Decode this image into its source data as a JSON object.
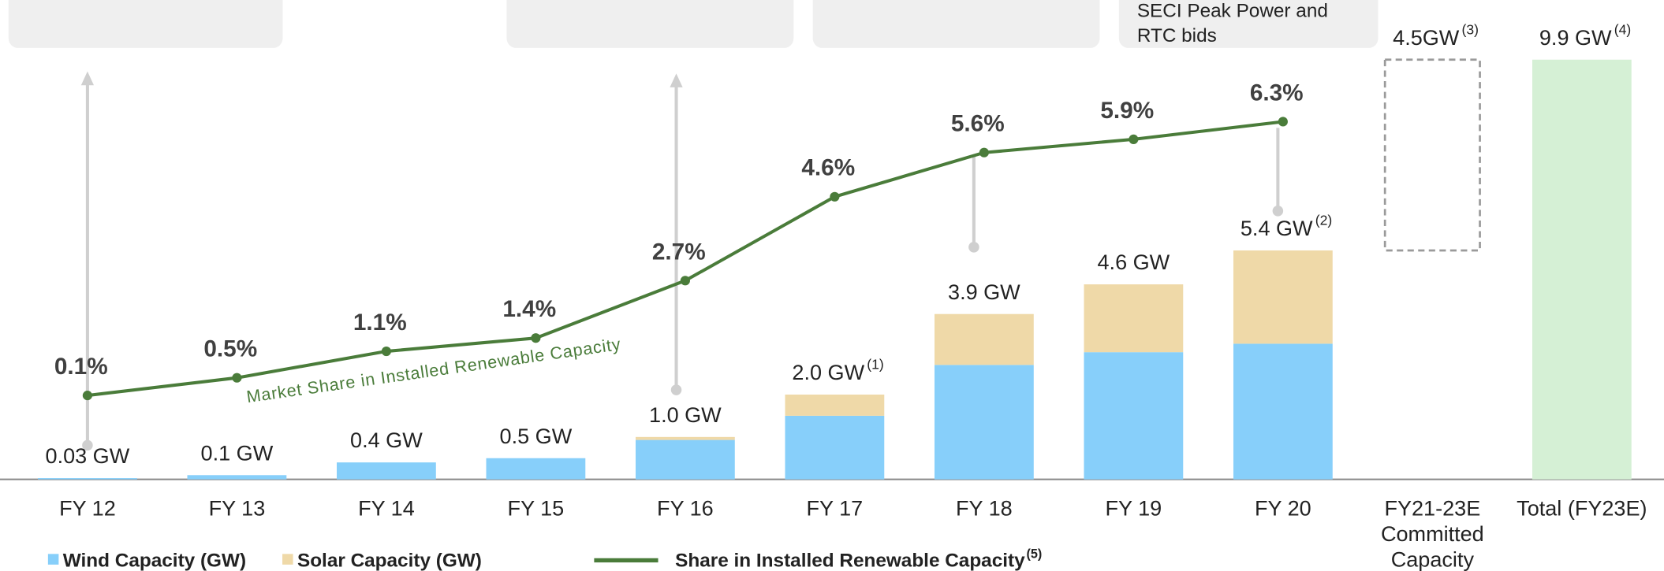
{
  "chart_data": {
    "type": "bar",
    "categories": [
      "FY 12",
      "FY 13",
      "FY 14",
      "FY 15",
      "FY 16",
      "FY 17",
      "FY 18",
      "FY 19",
      "FY 20",
      "FY21-23E\nCommitted\nCapacity",
      "Total (FY23E)"
    ],
    "series": [
      {
        "name": "Wind Capacity (GW)",
        "color": "#87cffa",
        "values": [
          0.03,
          0.1,
          0.4,
          0.5,
          0.93,
          1.5,
          2.7,
          3.0,
          3.2,
          null,
          null
        ]
      },
      {
        "name": "Solar Capacity (GW)",
        "color": "#efd9a8",
        "values": [
          0,
          0,
          0,
          0,
          0.07,
          0.5,
          1.2,
          1.6,
          2.2,
          null,
          null
        ]
      },
      {
        "name": "Share in Installed Renewable Capacity",
        "note": "(5)",
        "color": "#4a7c3a",
        "axis": "y2",
        "type": "line",
        "values": [
          0.1,
          0.5,
          1.1,
          1.4,
          2.7,
          4.6,
          5.6,
          5.9,
          6.3,
          null,
          null
        ],
        "value_labels": [
          "0.1%",
          "0.5%",
          "1.1%",
          "1.4%",
          "2.7%",
          "4.6%",
          "5.6%",
          "5.9%",
          "6.3%",
          null,
          null
        ]
      }
    ],
    "committed_value": 4.5,
    "committed_color": "#9a9a9a",
    "total_value": 9.9,
    "total_color": "#d5f0d5",
    "stack_labels": [
      "0.03 GW",
      "0.1 GW",
      "0.4 GW",
      "0.5 GW",
      "1.0 GW",
      "2.0 GW",
      "3.9 GW",
      "4.6 GW",
      "5.4 GW",
      "4.5GW",
      "9.9 GW"
    ],
    "stack_label_notes": [
      null,
      null,
      null,
      null,
      null,
      "(1)",
      null,
      null,
      "(2)",
      "(3)",
      "(4)"
    ],
    "line_annotation": "Market Share in Installed Renewable Capacity",
    "top_box_text": [
      "SECI Peak Power and",
      "RTC bids"
    ],
    "ylim": [
      0,
      10
    ],
    "y2lim": [
      -1.8,
      7.8
    ]
  }
}
